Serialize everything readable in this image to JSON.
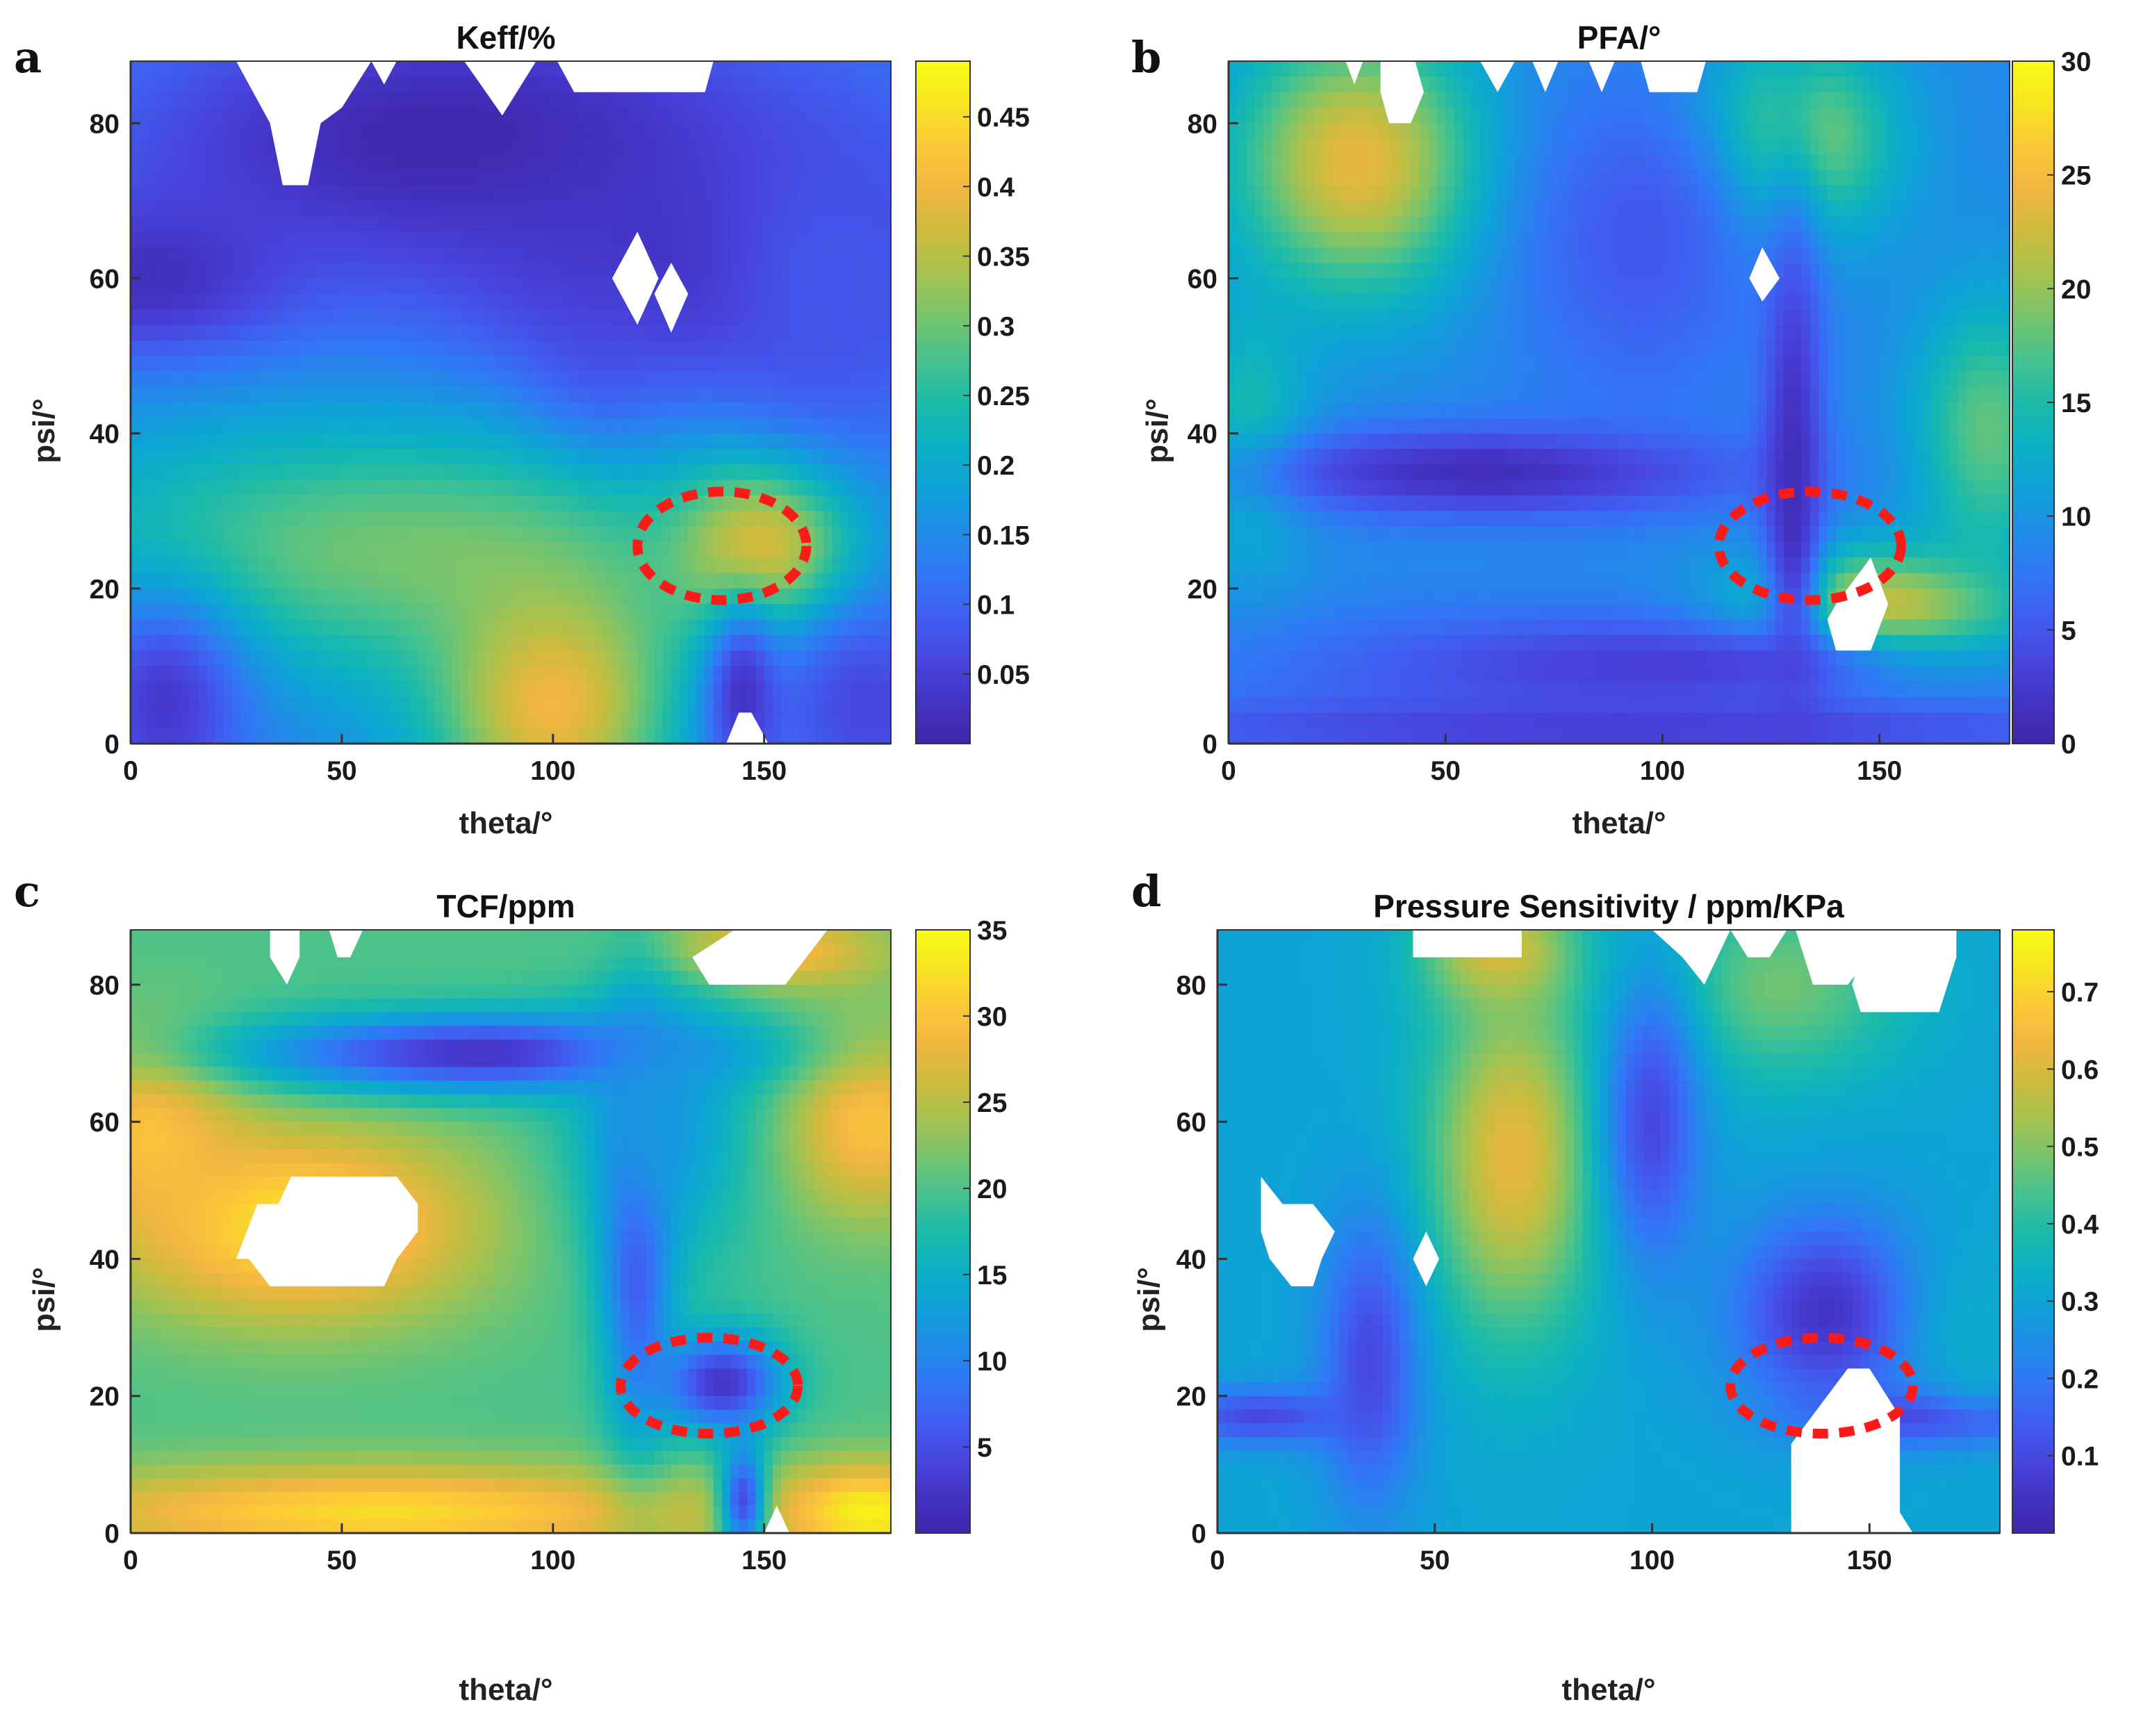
{
  "colormap": [
    "#3e26a8",
    "#4433c4",
    "#4746e0",
    "#3f5ff0",
    "#3177f6",
    "#1f8de6",
    "#0fa1d8",
    "#0cb0c4",
    "#1dbaa9",
    "#46c28e",
    "#77c46d",
    "#a6c24f",
    "#cdbb3e",
    "#f2b641",
    "#fcc838",
    "#f6e520",
    "#f9fb15"
  ],
  "annotation_color": "#ff1a1a",
  "chart_data": [
    {
      "type": "heatmap",
      "panel_label": "a",
      "title": "Keff/%",
      "xlabel": "theta/°",
      "ylabel": "psi/°",
      "xlim": [
        0,
        180
      ],
      "ylim": [
        0,
        88
      ],
      "xticks": [
        "0",
        "50",
        "100",
        "150"
      ],
      "yticks": [
        "0",
        "20",
        "40",
        "60",
        "80"
      ],
      "colorbar": {
        "min": 0,
        "max": 0.49,
        "ticks": [
          "0.05",
          "0.1",
          "0.15",
          "0.2",
          "0.25",
          "0.3",
          "0.35",
          "0.4",
          "0.45"
        ],
        "tick_values": [
          0.05,
          0.1,
          0.15,
          0.2,
          0.25,
          0.3,
          0.35,
          0.4,
          0.45
        ]
      },
      "base": 0.14,
      "features": [
        {
          "theta": 75,
          "psi": 78,
          "value": 0.0,
          "sx": 55,
          "sy": 12
        },
        {
          "theta": 135,
          "psi": 62,
          "value": 0.02,
          "sx": 45,
          "sy": 14
        },
        {
          "theta": 5,
          "psi": 60,
          "value": 0.02,
          "sx": 25,
          "sy": 8
        },
        {
          "theta": 110,
          "psi": 48,
          "value": 0.05,
          "sx": 12,
          "sy": 10
        },
        {
          "theta": 60,
          "psi": 25,
          "value": 0.3,
          "sx": 60,
          "sy": 12
        },
        {
          "theta": 100,
          "psi": 5,
          "value": 0.4,
          "sx": 20,
          "sy": 12
        },
        {
          "theta": 150,
          "psi": 25,
          "value": 0.42,
          "sx": 14,
          "sy": 8
        },
        {
          "theta": 8,
          "psi": 5,
          "value": 0.04,
          "sx": 14,
          "sy": 10
        },
        {
          "theta": 175,
          "psi": 5,
          "value": 0.06,
          "sx": 18,
          "sy": 10
        },
        {
          "theta": 145,
          "psi": 6,
          "value": 0.03,
          "sx": 6,
          "sy": 8
        },
        {
          "theta": 165,
          "psi": 60,
          "value": 0.08,
          "sx": 20,
          "sy": 15
        }
      ],
      "white_regions": [
        [
          [
            25,
            88
          ],
          [
            57,
            88
          ],
          [
            50,
            82
          ],
          [
            45,
            80
          ],
          [
            42,
            72
          ],
          [
            36,
            72
          ],
          [
            33,
            80
          ],
          [
            28,
            85
          ]
        ],
        [
          [
            57,
            88
          ],
          [
            63,
            88
          ],
          [
            60,
            85
          ]
        ],
        [
          [
            79,
            88
          ],
          [
            96,
            88
          ],
          [
            88,
            81
          ]
        ],
        [
          [
            101,
            88
          ],
          [
            138,
            88
          ],
          [
            136,
            84
          ],
          [
            105,
            84
          ]
        ],
        [
          [
            120,
            66
          ],
          [
            125,
            60
          ],
          [
            120,
            54
          ],
          [
            114,
            60
          ]
        ],
        [
          [
            128,
            62
          ],
          [
            132,
            58
          ],
          [
            128,
            53
          ],
          [
            124,
            58
          ]
        ],
        [
          [
            141,
            0
          ],
          [
            151,
            0
          ],
          [
            147,
            4
          ],
          [
            144,
            4
          ]
        ]
      ],
      "ellipse": {
        "theta": 140,
        "psi": 25.5,
        "rtheta": 20,
        "rpsi": 7
      }
    },
    {
      "type": "heatmap",
      "panel_label": "b",
      "title": "PFA/°",
      "xlabel": "theta/°",
      "ylabel": "psi/°",
      "xlim": [
        0,
        180
      ],
      "ylim": [
        0,
        88
      ],
      "xticks": [
        "0",
        "50",
        "100",
        "150"
      ],
      "yticks": [
        "0",
        "20",
        "40",
        "60",
        "80"
      ],
      "colorbar": {
        "min": 0,
        "max": 30,
        "ticks": [
          "0",
          "5",
          "10",
          "15",
          "20",
          "25",
          "30"
        ],
        "tick_values": [
          0,
          5,
          10,
          15,
          20,
          25,
          30
        ]
      },
      "base": 9,
      "features": [
        {
          "theta": 30,
          "psi": 75,
          "value": 24,
          "sx": 20,
          "sy": 12
        },
        {
          "theta": 150,
          "psi": 15,
          "value": 29,
          "sx": 22,
          "sy": 6
        },
        {
          "theta": 130,
          "psi": 78,
          "value": 21,
          "sx": 16,
          "sy": 9
        },
        {
          "theta": 175,
          "psi": 40,
          "value": 18,
          "sx": 12,
          "sy": 12
        },
        {
          "theta": 5,
          "psi": 40,
          "value": 15,
          "sx": 10,
          "sy": 12
        },
        {
          "theta": 60,
          "psi": 35,
          "value": 1,
          "sx": 40,
          "sy": 4
        },
        {
          "theta": 130,
          "psi": 35,
          "value": 1,
          "sx": 5,
          "sy": 25
        },
        {
          "theta": 100,
          "psi": 10,
          "value": 3,
          "sx": 60,
          "sy": 5
        },
        {
          "theta": 90,
          "psi": 2,
          "value": 3,
          "sx": 90,
          "sy": 3
        },
        {
          "theta": 95,
          "psi": 65,
          "value": 5,
          "sx": 20,
          "sy": 15
        }
      ],
      "white_regions": [
        [
          [
            35,
            88
          ],
          [
            43,
            88
          ],
          [
            45,
            84
          ],
          [
            42,
            80
          ],
          [
            37,
            80
          ],
          [
            35,
            84
          ]
        ],
        [
          [
            27,
            88
          ],
          [
            31,
            88
          ],
          [
            29,
            85
          ]
        ],
        [
          [
            58,
            88
          ],
          [
            66,
            88
          ],
          [
            62,
            84
          ]
        ],
        [
          [
            70,
            88
          ],
          [
            76,
            88
          ],
          [
            73,
            84
          ]
        ],
        [
          [
            83,
            88
          ],
          [
            89,
            88
          ],
          [
            86,
            84
          ]
        ],
        [
          [
            95,
            88
          ],
          [
            110,
            88
          ],
          [
            108,
            84
          ],
          [
            97,
            84
          ]
        ],
        [
          [
            123,
            64
          ],
          [
            127,
            60
          ],
          [
            123,
            57
          ],
          [
            120,
            60
          ]
        ],
        [
          [
            140,
            12
          ],
          [
            148,
            12
          ],
          [
            152,
            18
          ],
          [
            148,
            24
          ],
          [
            140,
            18
          ],
          [
            138,
            16
          ]
        ]
      ],
      "ellipse": {
        "theta": 134,
        "psi": 25.5,
        "rtheta": 21,
        "rpsi": 7
      }
    },
    {
      "type": "heatmap",
      "panel_label": "c",
      "title": "TCF/ppm",
      "xlabel": "theta/°",
      "ylabel": "psi/°",
      "xlim": [
        0,
        180
      ],
      "ylim": [
        0,
        88
      ],
      "xticks": [
        "0",
        "50",
        "100",
        "150"
      ],
      "yticks": [
        "0",
        "20",
        "40",
        "60",
        "80"
      ],
      "colorbar": {
        "min": 0,
        "max": 35,
        "ticks": [
          "5",
          "10",
          "15",
          "20",
          "25",
          "30",
          "35"
        ],
        "tick_values": [
          5,
          10,
          15,
          20,
          25,
          30,
          35
        ]
      },
      "base": 20,
      "features": [
        {
          "theta": 40,
          "psi": 45,
          "value": 33,
          "sx": 30,
          "sy": 10
        },
        {
          "theta": 5,
          "psi": 58,
          "value": 30,
          "sx": 15,
          "sy": 10
        },
        {
          "theta": 175,
          "psi": 60,
          "value": 30,
          "sx": 15,
          "sy": 10
        },
        {
          "theta": 60,
          "psi": 3,
          "value": 32,
          "sx": 60,
          "sy": 5
        },
        {
          "theta": 175,
          "psi": 3,
          "value": 34,
          "sx": 15,
          "sy": 5
        },
        {
          "theta": 150,
          "psi": 85,
          "value": 30,
          "sx": 20,
          "sy": 4
        },
        {
          "theta": 85,
          "psi": 70,
          "value": 2,
          "sx": 40,
          "sy": 4
        },
        {
          "theta": 120,
          "psi": 45,
          "value": 3,
          "sx": 6,
          "sy": 20
        },
        {
          "theta": 140,
          "psi": 22,
          "value": 2,
          "sx": 10,
          "sy": 5
        },
        {
          "theta": 125,
          "psi": 60,
          "value": 12,
          "sx": 15,
          "sy": 15
        },
        {
          "theta": 145,
          "psi": 5,
          "value": 5,
          "sx": 4,
          "sy": 6
        }
      ],
      "white_regions": [
        [
          [
            25,
            40
          ],
          [
            30,
            48
          ],
          [
            35,
            48
          ],
          [
            38,
            52
          ],
          [
            63,
            52
          ],
          [
            68,
            48
          ],
          [
            68,
            44
          ],
          [
            63,
            40
          ],
          [
            60,
            36
          ],
          [
            38,
            36
          ],
          [
            33,
            36
          ],
          [
            28,
            40
          ]
        ],
        [
          [
            33,
            88
          ],
          [
            40,
            88
          ],
          [
            40,
            84
          ],
          [
            37,
            80
          ],
          [
            33,
            84
          ]
        ],
        [
          [
            47,
            88
          ],
          [
            55,
            88
          ],
          [
            52,
            84
          ],
          [
            49,
            84
          ]
        ],
        [
          [
            143,
            88
          ],
          [
            165,
            88
          ],
          [
            160,
            84
          ],
          [
            155,
            80
          ],
          [
            137,
            80
          ],
          [
            133,
            84
          ]
        ],
        [
          [
            150,
            0
          ],
          [
            156,
            0
          ],
          [
            153,
            4
          ]
        ]
      ],
      "ellipse": {
        "theta": 137,
        "psi": 21.5,
        "rtheta": 21,
        "rpsi": 7
      }
    },
    {
      "type": "heatmap",
      "panel_label": "d",
      "title": "Pressure Sensitivity / ppm/KPa",
      "xlabel": "theta/°",
      "ylabel": "psi/°",
      "xlim": [
        0,
        180
      ],
      "ylim": [
        0,
        88
      ],
      "xticks": [
        "0",
        "50",
        "100",
        "150"
      ],
      "yticks": [
        "0",
        "20",
        "40",
        "60",
        "80"
      ],
      "colorbar": {
        "min": 0,
        "max": 0.78,
        "ticks": [
          "0.1",
          "0.2",
          "0.3",
          "0.4",
          "0.5",
          "0.6",
          "0.7"
        ],
        "tick_values": [
          0.1,
          0.2,
          0.3,
          0.4,
          0.5,
          0.6,
          0.7
        ]
      },
      "base": 0.3,
      "features": [
        {
          "theta": 68,
          "psi": 55,
          "value": 0.62,
          "sx": 14,
          "sy": 18
        },
        {
          "theta": 65,
          "psi": 85,
          "value": 0.6,
          "sx": 12,
          "sy": 6
        },
        {
          "theta": 130,
          "psi": 80,
          "value": 0.48,
          "sx": 20,
          "sy": 10
        },
        {
          "theta": 35,
          "psi": 25,
          "value": 0.1,
          "sx": 8,
          "sy": 15
        },
        {
          "theta": 140,
          "psi": 32,
          "value": 0.05,
          "sx": 15,
          "sy": 10
        },
        {
          "theta": 170,
          "psi": 17,
          "value": 0.05,
          "sx": 20,
          "sy": 3
        },
        {
          "theta": 10,
          "psi": 17,
          "value": 0.1,
          "sx": 15,
          "sy": 3
        },
        {
          "theta": 100,
          "psi": 60,
          "value": 0.1,
          "sx": 8,
          "sy": 15
        },
        {
          "theta": 175,
          "psi": 30,
          "value": 0.32,
          "sx": 10,
          "sy": 10
        }
      ],
      "white_regions": [
        [
          [
            45,
            88
          ],
          [
            70,
            88
          ],
          [
            70,
            84
          ],
          [
            45,
            84
          ]
        ],
        [
          [
            100,
            88
          ],
          [
            118,
            88
          ],
          [
            115,
            84
          ],
          [
            112,
            80
          ],
          [
            107,
            84
          ]
        ],
        [
          [
            118,
            88
          ],
          [
            131,
            88
          ],
          [
            127,
            84
          ],
          [
            122,
            84
          ]
        ],
        [
          [
            133,
            88
          ],
          [
            150,
            88
          ],
          [
            150,
            84
          ],
          [
            145,
            80
          ],
          [
            137,
            80
          ]
        ],
        [
          [
            150,
            88
          ],
          [
            170,
            88
          ],
          [
            170,
            84
          ],
          [
            166,
            76
          ],
          [
            148,
            76
          ],
          [
            146,
            80
          ]
        ],
        [
          [
            10,
            52
          ],
          [
            15,
            48
          ],
          [
            22,
            48
          ],
          [
            27,
            44
          ],
          [
            24,
            40
          ],
          [
            22,
            36
          ],
          [
            17,
            36
          ],
          [
            12,
            40
          ],
          [
            10,
            44
          ]
        ],
        [
          [
            48,
            44
          ],
          [
            51,
            40
          ],
          [
            48,
            36
          ],
          [
            45,
            40
          ]
        ],
        [
          [
            132,
            0
          ],
          [
            160,
            0
          ],
          [
            157,
            3
          ],
          [
            157,
            17
          ],
          [
            150,
            24
          ],
          [
            145,
            24
          ],
          [
            132,
            13
          ]
        ]
      ],
      "ellipse": {
        "theta": 139,
        "psi": 21.5,
        "rtheta": 21,
        "rpsi": 7
      }
    }
  ]
}
